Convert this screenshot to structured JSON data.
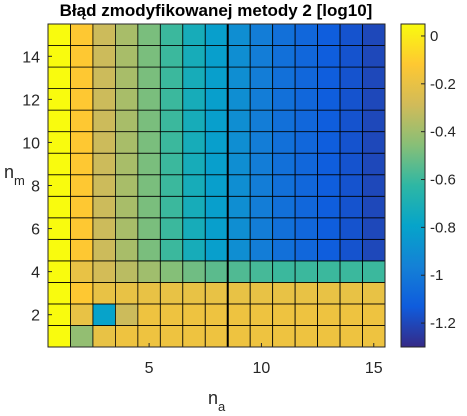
{
  "chart_data": {
    "type": "heatmap",
    "title": "Błąd zmodyfikowanej metody 2 [log10]",
    "xlabel": {
      "main": "n",
      "sub": "a"
    },
    "ylabel": {
      "main": "n",
      "sub": "m"
    },
    "x": [
      1,
      2,
      3,
      4,
      5,
      6,
      7,
      8,
      9,
      10,
      11,
      12,
      13,
      14,
      15
    ],
    "y": [
      1,
      2,
      3,
      4,
      5,
      6,
      7,
      8,
      9,
      10,
      11,
      12,
      13,
      14,
      15
    ],
    "xlim": [
      0.5,
      15.5
    ],
    "ylim": [
      0.5,
      15.5
    ],
    "xticks": [
      5,
      10,
      15
    ],
    "xtick_labels": [
      "5",
      "10",
      "15"
    ],
    "yticks": [
      2,
      4,
      6,
      8,
      10,
      12,
      14
    ],
    "ytick_labels": [
      "2",
      "4",
      "6",
      "8",
      "10",
      "12",
      "14"
    ],
    "clim": [
      -1.3,
      0.05
    ],
    "colorbar": {
      "ticks": [
        0,
        -0.2,
        -0.4,
        -0.6,
        -0.8,
        -1,
        -1.2
      ],
      "tick_labels": [
        "0",
        "-0.2",
        "-0.4",
        "-0.6",
        "-0.8",
        "-1",
        "-1.2"
      ]
    },
    "colormap": "parula",
    "colormap_stops": [
      "#352A87",
      "#0F5CDD",
      "#1481D6",
      "#06A4CA",
      "#2EB7A4",
      "#87BF77",
      "#D1BB59",
      "#FEC832",
      "#F9FB0E"
    ],
    "grid_color": "#000000",
    "vertical_line_at_x": 8,
    "z": [
      [
        0.08,
        -0.43,
        -0.2,
        -0.18,
        -0.18,
        -0.18,
        -0.18,
        -0.18,
        -0.18,
        -0.18,
        -0.18,
        -0.18,
        -0.18,
        -0.18,
        -0.18
      ],
      [
        0.08,
        -0.2,
        -0.8,
        -0.3,
        -0.18,
        -0.18,
        -0.18,
        -0.18,
        -0.18,
        -0.18,
        -0.18,
        -0.18,
        -0.18,
        -0.18,
        -0.18
      ],
      [
        0.08,
        -0.12,
        -0.2,
        -0.2,
        -0.2,
        -0.2,
        -0.2,
        -0.2,
        -0.2,
        -0.2,
        -0.2,
        -0.2,
        -0.2,
        -0.2,
        -0.2
      ],
      [
        0.08,
        -0.2,
        -0.28,
        -0.34,
        -0.4,
        -0.46,
        -0.5,
        -0.54,
        -0.56,
        -0.58,
        -0.6,
        -0.6,
        -0.6,
        -0.6,
        -0.6
      ],
      [
        0.08,
        -0.12,
        -0.3,
        -0.38,
        -0.48,
        -0.6,
        -0.72,
        -0.82,
        -0.9,
        -0.98,
        -1.04,
        -1.08,
        -1.12,
        -1.16,
        -1.2
      ],
      [
        0.08,
        -0.12,
        -0.3,
        -0.38,
        -0.48,
        -0.6,
        -0.72,
        -0.82,
        -0.9,
        -0.98,
        -1.04,
        -1.08,
        -1.12,
        -1.16,
        -1.2
      ],
      [
        0.08,
        -0.12,
        -0.3,
        -0.38,
        -0.48,
        -0.6,
        -0.72,
        -0.82,
        -0.9,
        -0.98,
        -1.04,
        -1.08,
        -1.12,
        -1.16,
        -1.2
      ],
      [
        0.08,
        -0.12,
        -0.3,
        -0.38,
        -0.48,
        -0.6,
        -0.72,
        -0.82,
        -0.9,
        -0.98,
        -1.04,
        -1.08,
        -1.12,
        -1.16,
        -1.2
      ],
      [
        0.08,
        -0.12,
        -0.3,
        -0.38,
        -0.48,
        -0.6,
        -0.72,
        -0.82,
        -0.9,
        -0.98,
        -1.04,
        -1.08,
        -1.12,
        -1.16,
        -1.2
      ],
      [
        0.08,
        -0.12,
        -0.3,
        -0.38,
        -0.48,
        -0.6,
        -0.72,
        -0.82,
        -0.9,
        -0.98,
        -1.04,
        -1.08,
        -1.12,
        -1.16,
        -1.2
      ],
      [
        0.08,
        -0.12,
        -0.3,
        -0.38,
        -0.48,
        -0.6,
        -0.72,
        -0.82,
        -0.9,
        -0.98,
        -1.04,
        -1.08,
        -1.12,
        -1.16,
        -1.2
      ],
      [
        0.08,
        -0.12,
        -0.3,
        -0.38,
        -0.48,
        -0.6,
        -0.72,
        -0.82,
        -0.9,
        -0.98,
        -1.04,
        -1.08,
        -1.12,
        -1.16,
        -1.2
      ],
      [
        0.08,
        -0.12,
        -0.3,
        -0.38,
        -0.48,
        -0.6,
        -0.72,
        -0.82,
        -0.9,
        -0.98,
        -1.04,
        -1.08,
        -1.12,
        -1.16,
        -1.2
      ],
      [
        0.08,
        -0.12,
        -0.3,
        -0.38,
        -0.48,
        -0.6,
        -0.72,
        -0.82,
        -0.9,
        -0.98,
        -1.04,
        -1.08,
        -1.12,
        -1.16,
        -1.2
      ],
      [
        0.08,
        -0.12,
        -0.3,
        -0.38,
        -0.48,
        -0.6,
        -0.72,
        -0.82,
        -0.9,
        -0.98,
        -1.04,
        -1.08,
        -1.12,
        -1.16,
        -1.2
      ]
    ]
  }
}
